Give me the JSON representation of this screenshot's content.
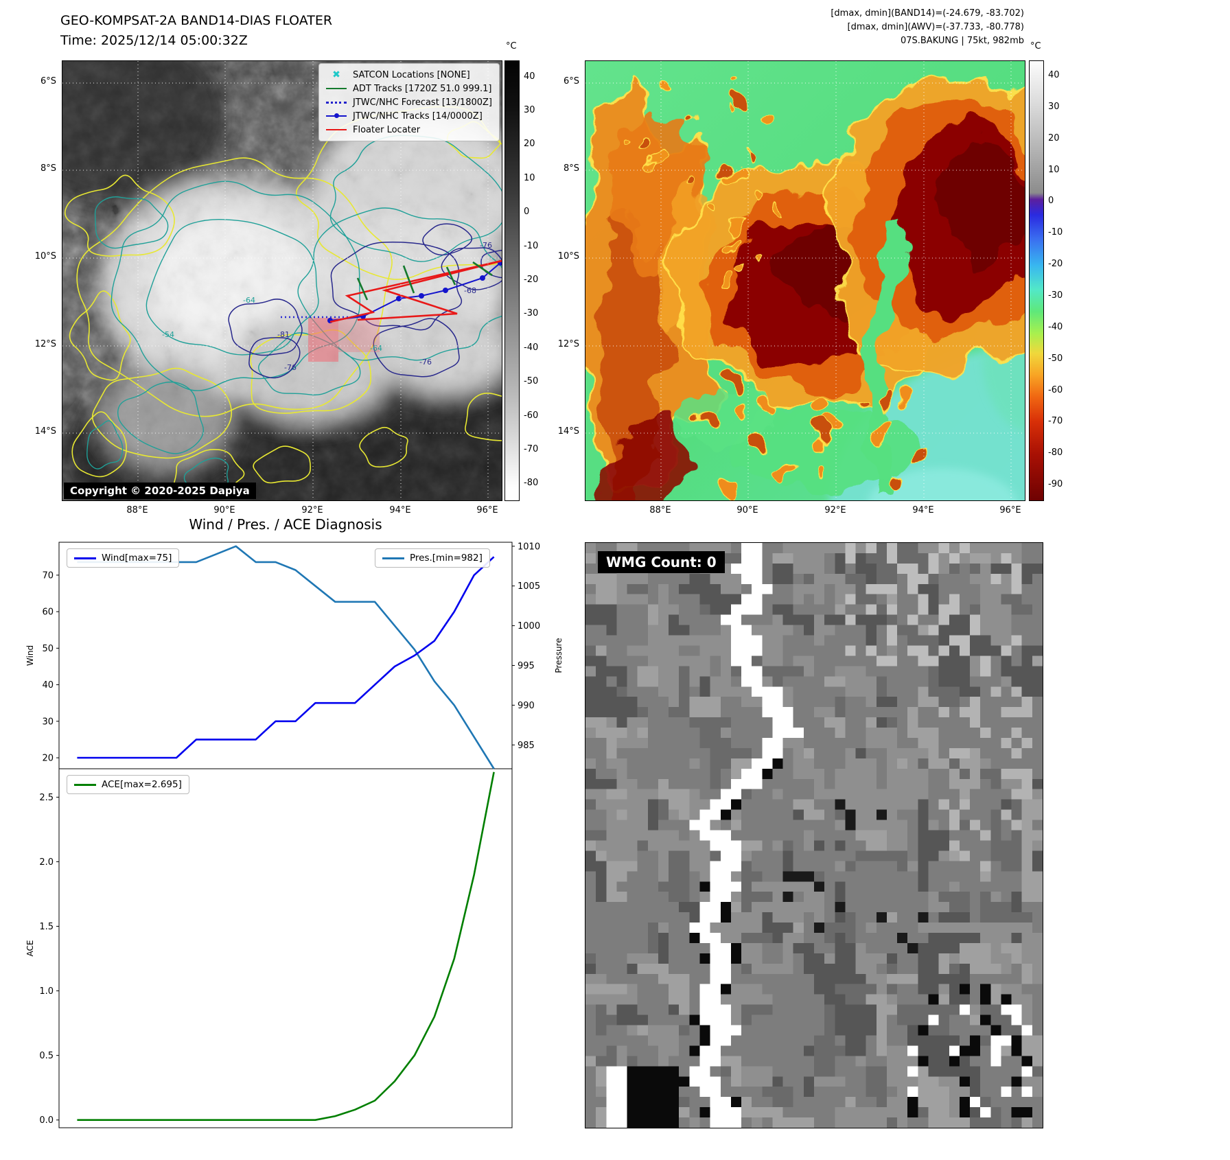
{
  "header": {
    "title": "GEO-KOMPSAT-2A BAND14-DIAS FLOATER",
    "time_line": "Time: 2025/12/14 05:00:32Z",
    "annotations": [
      "[dmax, dmin](BAND14)=(-24.679, -83.702)",
      "[dmax, dmin](AWV)=(-37.733, -80.778)",
      "07S.BAKUNG | 75kt, 982mb"
    ]
  },
  "left_map": {
    "legend_items": [
      {
        "label": "SATCON Locations [NONE]"
      },
      {
        "label": "ADT Tracks [1720Z 51.0 999.1]"
      },
      {
        "label": "JTWC/NHC Forecast [13/1800Z]"
      },
      {
        "label": "JTWC/NHC Tracks [14/0000Z]"
      },
      {
        "label": "Floater Locater"
      }
    ],
    "copyright": "Copyright © 2020-2025 Dapiya",
    "contour_labels": [
      "-54",
      "-64",
      "-81",
      "-76",
      "-64",
      "-76",
      "-68",
      "-76"
    ],
    "lat_ticks": [
      "6°S",
      "8°S",
      "10°S",
      "12°S",
      "14°S"
    ],
    "lon_ticks": [
      "88°E",
      "90°E",
      "92°E",
      "94°E",
      "96°E"
    ],
    "colorbar_unit": "°C",
    "colorbar_ticks": [
      40,
      30,
      20,
      10,
      0,
      -10,
      -20,
      -30,
      -40,
      -50,
      -60,
      -70,
      -80
    ]
  },
  "right_map": {
    "lat_ticks": [
      "6°S",
      "8°S",
      "10°S",
      "12°S",
      "14°S"
    ],
    "lon_ticks": [
      "88°E",
      "90°E",
      "92°E",
      "94°E",
      "96°E"
    ],
    "colorbar_unit": "°C",
    "colorbar_ticks": [
      40,
      30,
      20,
      10,
      0,
      -10,
      -20,
      -30,
      -40,
      -50,
      -60,
      -70,
      -80,
      -90
    ]
  },
  "diagnosis": {
    "title": "Wind / Pres. / ACE Diagnosis",
    "ylabel_wind": "Wind",
    "ylabel_pressure": "Pressure",
    "ylabel_ace": "ACE"
  },
  "wmg": {
    "label": "WMG Count: 0"
  },
  "chart_data": [
    {
      "type": "line",
      "title": "Wind / Pres. / ACE Diagnosis",
      "x": [
        0,
        1,
        2,
        3,
        4,
        5,
        6,
        7,
        8,
        9,
        10,
        11,
        12,
        13,
        14,
        15,
        16,
        17,
        18,
        19,
        20,
        21
      ],
      "series": [
        {
          "name": "Wind[max=75]",
          "axis": "left",
          "color": "#0000ee",
          "values": [
            20,
            20,
            20,
            20,
            20,
            20,
            25,
            25,
            25,
            25,
            30,
            30,
            35,
            35,
            35,
            40,
            45,
            48,
            52,
            60,
            70,
            75
          ]
        },
        {
          "name": "Pres.[min=982]",
          "axis": "right",
          "color": "#1f77b4",
          "values": [
            1008,
            1008,
            1008,
            1008,
            1008,
            1008,
            1008,
            1009,
            1010,
            1008,
            1008,
            1007,
            1005,
            1003,
            1003,
            1003,
            1000,
            997,
            993,
            990,
            986,
            982
          ]
        }
      ],
      "ylabel_left": "Wind",
      "ylabel_right": "Pressure",
      "ylim_left": [
        17,
        79
      ],
      "ylim_right": [
        982,
        1010.5
      ],
      "yticks_left": [
        70,
        60,
        50,
        40,
        30,
        20
      ],
      "yticks_right": [
        1010,
        1005,
        1000,
        995,
        990,
        985
      ],
      "legend_position": "top"
    },
    {
      "type": "line",
      "x": [
        0,
        1,
        2,
        3,
        4,
        5,
        6,
        7,
        8,
        9,
        10,
        11,
        12,
        13,
        14,
        15,
        16,
        17,
        18,
        19,
        20,
        21
      ],
      "series": [
        {
          "name": "ACE[max=2.695]",
          "color": "#007f00",
          "values": [
            0,
            0,
            0,
            0,
            0,
            0,
            0,
            0,
            0,
            0,
            0,
            0,
            0,
            0.03,
            0.08,
            0.15,
            0.3,
            0.5,
            0.8,
            1.25,
            1.9,
            2.695
          ]
        }
      ],
      "ylabel": "ACE",
      "ylim": [
        -0.06,
        2.72
      ],
      "yticks": [
        2.5,
        2.0,
        1.5,
        1.0,
        0.5,
        0.0
      ]
    }
  ]
}
